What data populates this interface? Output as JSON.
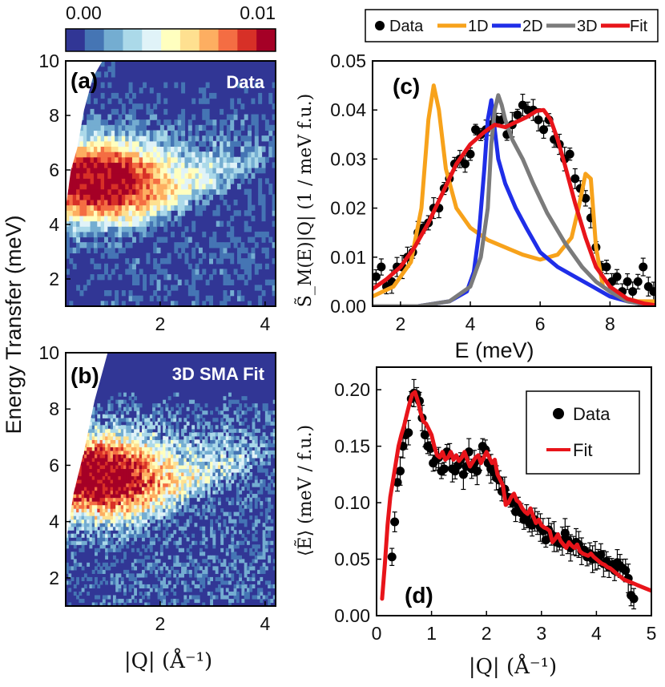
{
  "chart_data": [
    {
      "id": "a",
      "type": "heatmap",
      "panel_label": "(a)",
      "inner_label": "Data",
      "ylabel": "Energy Transfer (meV)",
      "xlim": [
        0.2,
        4.2
      ],
      "ylim": [
        1,
        10
      ],
      "xticks": [
        "2",
        "4"
      ],
      "yticks": [
        "2",
        "4",
        "6",
        "8",
        "10"
      ],
      "colorbar": {
        "min_label": "0.00",
        "max_label": "0.01",
        "colors": [
          "#313695",
          "#4575b4",
          "#74add1",
          "#abd9e9",
          "#e0f3f8",
          "#ffffbf",
          "#fee090",
          "#fdae61",
          "#f46d43",
          "#d73027",
          "#a50026"
        ]
      }
    },
    {
      "id": "b",
      "type": "heatmap",
      "panel_label": "(b)",
      "inner_label": "3D SMA Fit",
      "xlabel": "|Q| (Å⁻¹)",
      "xlim": [
        0.2,
        4.2
      ],
      "ylim": [
        1,
        10
      ],
      "xticks": [
        "2",
        "4"
      ],
      "yticks": [
        "2",
        "4",
        "6",
        "8",
        "10"
      ]
    },
    {
      "id": "c",
      "type": "line",
      "panel_label": "(c)",
      "xlabel": "E (meV)",
      "ylabel": "S̃_M(E)|Q| (1 / meV f.u.)",
      "xlim": [
        1.2,
        9.3
      ],
      "ylim": [
        0,
        0.05
      ],
      "xticks": [
        "2",
        "4",
        "6",
        "8"
      ],
      "yticks": [
        "0.00",
        "0.01",
        "0.02",
        "0.03",
        "0.04",
        "0.05"
      ],
      "legend": {
        "position": "top",
        "entries": [
          "Data",
          "1D",
          "2D",
          "3D",
          "Fit"
        ]
      },
      "series": [
        {
          "name": "Data",
          "kind": "points",
          "x": [
            1.3,
            1.45,
            1.6,
            1.75,
            1.9,
            2.05,
            2.2,
            2.35,
            2.5,
            2.65,
            2.8,
            2.95,
            3.1,
            3.25,
            3.4,
            3.55,
            3.7,
            3.85,
            4.0,
            4.15,
            4.3,
            4.45,
            4.6,
            4.75,
            4.9,
            5.05,
            5.2,
            5.35,
            5.5,
            5.65,
            5.8,
            5.95,
            6.1,
            6.25,
            6.4,
            6.55,
            6.7,
            6.85,
            7.0,
            7.15,
            7.3,
            7.45,
            7.6,
            7.75,
            7.9,
            8.05,
            8.2,
            8.35,
            8.5,
            8.65,
            8.8,
            8.95,
            9.1,
            9.25
          ],
          "y": [
            0.006,
            0.008,
            0.004,
            0.005,
            0.008,
            0.008,
            0.01,
            0.011,
            0.015,
            0.016,
            0.017,
            0.02,
            0.02,
            0.024,
            0.026,
            0.029,
            0.03,
            0.029,
            0.031,
            0.036,
            0.035,
            0.036,
            0.037,
            0.038,
            0.038,
            0.035,
            0.037,
            0.039,
            0.041,
            0.04,
            0.04,
            0.038,
            0.036,
            0.038,
            0.034,
            0.033,
            0.03,
            0.031,
            0.026,
            0.024,
            0.022,
            0.018,
            0.012,
            0.008,
            0.008,
            0.005,
            0.006,
            0.003,
            0.005,
            0.003,
            0.005,
            0.008,
            0.004,
            0.003
          ]
        },
        {
          "name": "1D",
          "color": "#f7a21b",
          "x": [
            1.2,
            1.8,
            2.3,
            2.6,
            2.8,
            2.95,
            3.1,
            3.3,
            3.6,
            4.0,
            4.5,
            5.0,
            5.5,
            6.0,
            6.5,
            6.9,
            7.1,
            7.3,
            7.45,
            7.6,
            7.8,
            8.2,
            8.8,
            9.3
          ],
          "y": [
            0.002,
            0.004,
            0.009,
            0.02,
            0.038,
            0.045,
            0.04,
            0.028,
            0.02,
            0.016,
            0.0135,
            0.012,
            0.0105,
            0.0095,
            0.0105,
            0.014,
            0.02,
            0.027,
            0.026,
            0.012,
            0.004,
            0.002,
            0.001,
            0.001
          ]
        },
        {
          "name": "2D",
          "color": "#1f2ee8",
          "x": [
            1.2,
            2.5,
            3.4,
            3.9,
            4.1,
            4.25,
            4.4,
            4.5,
            4.6,
            4.7,
            4.8,
            5.0,
            5.3,
            5.6,
            6.0,
            6.5,
            7.0,
            7.5,
            8.0,
            8.5,
            9.3
          ],
          "y": [
            0,
            0,
            0.001,
            0.003,
            0.007,
            0.015,
            0.028,
            0.038,
            0.042,
            0.036,
            0.03,
            0.025,
            0.02,
            0.016,
            0.011,
            0.008,
            0.006,
            0.004,
            0.002,
            0.001,
            0
          ]
        },
        {
          "name": "3D",
          "color": "#7b7b7b",
          "x": [
            1.2,
            2.5,
            3.4,
            4.0,
            4.3,
            4.5,
            4.6,
            4.7,
            4.8,
            4.9,
            5.0,
            5.2,
            5.5,
            5.8,
            6.2,
            6.7,
            7.2,
            7.6,
            8.0,
            8.5,
            9.3
          ],
          "y": [
            0,
            0,
            0.001,
            0.004,
            0.01,
            0.02,
            0.033,
            0.04,
            0.043,
            0.041,
            0.038,
            0.034,
            0.03,
            0.025,
            0.019,
            0.013,
            0.008,
            0.005,
            0.003,
            0.001,
            0
          ]
        },
        {
          "name": "Fit",
          "color": "#e8141a",
          "x": [
            1.2,
            1.6,
            2.0,
            2.4,
            2.8,
            3.2,
            3.6,
            4.0,
            4.4,
            4.7,
            5.0,
            5.3,
            5.6,
            5.9,
            6.1,
            6.3,
            6.5,
            6.7,
            7.0,
            7.3,
            7.6,
            8.0,
            8.5,
            9.0,
            9.3
          ],
          "y": [
            0.0035,
            0.0055,
            0.008,
            0.012,
            0.017,
            0.023,
            0.029,
            0.033,
            0.0355,
            0.037,
            0.0365,
            0.0375,
            0.0385,
            0.0398,
            0.04,
            0.038,
            0.034,
            0.029,
            0.021,
            0.014,
            0.008,
            0.004,
            0.0015,
            0.0005,
            0.0002
          ]
        }
      ]
    },
    {
      "id": "d",
      "type": "line",
      "panel_label": "(d)",
      "xlabel": "|Q| (Å⁻¹)",
      "ylabel": "⟨Ẽ⟩ (meV / f.u.)",
      "xlim": [
        0,
        5
      ],
      "ylim": [
        0,
        0.22
      ],
      "xticks": [
        "0",
        "1",
        "2",
        "3",
        "4",
        "5"
      ],
      "yticks": [
        "0.00",
        "0.05",
        "0.10",
        "0.15",
        "0.20"
      ],
      "legend": {
        "position": "top-right",
        "entries": [
          "Data",
          "Fit"
        ]
      },
      "series": [
        {
          "name": "Data",
          "kind": "points",
          "x": [
            0.28,
            0.33,
            0.38,
            0.43,
            0.48,
            0.53,
            0.58,
            0.63,
            0.68,
            0.73,
            0.78,
            0.83,
            0.88,
            0.93,
            0.98,
            1.03,
            1.08,
            1.13,
            1.18,
            1.23,
            1.28,
            1.33,
            1.38,
            1.43,
            1.48,
            1.53,
            1.58,
            1.63,
            1.68,
            1.73,
            1.78,
            1.83,
            1.88,
            1.93,
            1.98,
            2.03,
            2.08,
            2.13,
            2.18,
            2.23,
            2.28,
            2.33,
            2.38,
            2.43,
            2.48,
            2.53,
            2.58,
            2.63,
            2.68,
            2.73,
            2.78,
            2.83,
            2.88,
            2.93,
            2.98,
            3.03,
            3.08,
            3.13,
            3.18,
            3.23,
            3.28,
            3.33,
            3.38,
            3.43,
            3.48,
            3.53,
            3.58,
            3.63,
            3.68,
            3.73,
            3.78,
            3.83,
            3.88,
            3.93,
            3.98,
            4.03,
            4.08,
            4.13,
            4.18,
            4.23,
            4.28,
            4.33,
            4.38,
            4.43,
            4.48,
            4.53,
            4.58,
            4.63,
            4.68
          ],
          "y": [
            0.052,
            0.083,
            0.118,
            0.128,
            0.15,
            0.16,
            0.162,
            0.192,
            0.197,
            0.196,
            0.19,
            0.175,
            0.16,
            0.15,
            0.148,
            0.135,
            0.138,
            0.14,
            0.128,
            0.13,
            0.145,
            0.142,
            0.13,
            0.128,
            0.133,
            0.138,
            0.125,
            0.132,
            0.145,
            0.13,
            0.135,
            0.128,
            0.138,
            0.15,
            0.147,
            0.135,
            0.13,
            0.127,
            0.122,
            0.12,
            0.11,
            0.112,
            0.105,
            0.102,
            0.1,
            0.092,
            0.097,
            0.091,
            0.085,
            0.088,
            0.082,
            0.08,
            0.085,
            0.082,
            0.078,
            0.075,
            0.067,
            0.076,
            0.072,
            0.07,
            0.065,
            0.064,
            0.066,
            0.073,
            0.067,
            0.06,
            0.062,
            0.065,
            0.063,
            0.057,
            0.058,
            0.052,
            0.055,
            0.05,
            0.053,
            0.05,
            0.054,
            0.046,
            0.048,
            0.043,
            0.045,
            0.04,
            0.047,
            0.044,
            0.042,
            0.04,
            0.033,
            0.018,
            0.015
          ]
        },
        {
          "name": "Fit",
          "color": "#e8141a",
          "x": [
            0.1,
            0.15,
            0.2,
            0.25,
            0.3,
            0.35,
            0.4,
            0.45,
            0.5,
            0.55,
            0.6,
            0.65,
            0.7,
            0.75,
            0.8,
            0.85,
            0.9,
            0.95,
            1.0,
            1.05,
            1.1,
            1.15,
            1.2,
            1.25,
            1.3,
            1.35,
            1.4,
            1.45,
            1.5,
            1.55,
            1.6,
            1.65,
            1.7,
            1.75,
            1.8,
            1.85,
            1.9,
            1.95,
            2.0,
            2.05,
            2.1,
            2.15,
            2.2,
            2.25,
            2.3,
            2.35,
            2.4,
            2.45,
            2.5,
            2.55,
            2.6,
            2.65,
            2.7,
            2.75,
            2.8,
            2.85,
            2.9,
            2.95,
            3.0,
            3.05,
            3.1,
            3.15,
            3.2,
            3.25,
            3.3,
            3.35,
            3.4,
            3.45,
            3.5,
            3.55,
            3.6,
            3.65,
            3.7,
            3.75,
            3.8,
            3.85,
            3.9,
            3.95,
            4.0,
            4.05,
            4.1,
            4.15,
            4.2,
            4.25,
            4.3,
            4.35,
            4.4,
            4.45,
            4.5,
            4.55,
            4.6,
            4.65,
            4.7,
            4.75,
            4.8,
            4.85,
            4.9,
            4.95,
            5.0
          ],
          "y": [
            0.015,
            0.045,
            0.08,
            0.105,
            0.12,
            0.135,
            0.15,
            0.16,
            0.168,
            0.178,
            0.188,
            0.196,
            0.198,
            0.19,
            0.18,
            0.172,
            0.17,
            0.165,
            0.16,
            0.15,
            0.142,
            0.14,
            0.145,
            0.138,
            0.14,
            0.145,
            0.138,
            0.142,
            0.137,
            0.14,
            0.145,
            0.138,
            0.132,
            0.136,
            0.14,
            0.142,
            0.135,
            0.14,
            0.145,
            0.14,
            0.135,
            0.138,
            0.125,
            0.12,
            0.115,
            0.098,
            0.1,
            0.105,
            0.108,
            0.102,
            0.1,
            0.095,
            0.092,
            0.09,
            0.095,
            0.088,
            0.082,
            0.085,
            0.08,
            0.078,
            0.077,
            0.075,
            0.065,
            0.068,
            0.072,
            0.066,
            0.063,
            0.06,
            0.065,
            0.062,
            0.06,
            0.063,
            0.057,
            0.055,
            0.054,
            0.053,
            0.055,
            0.052,
            0.05,
            0.048,
            0.046,
            0.045,
            0.043,
            0.042,
            0.04,
            0.038,
            0.036,
            0.034,
            0.032,
            0.031,
            0.03,
            0.029,
            0.028,
            0.027,
            0.026,
            0.025,
            0.024,
            0.023,
            0.022
          ]
        }
      ]
    }
  ]
}
